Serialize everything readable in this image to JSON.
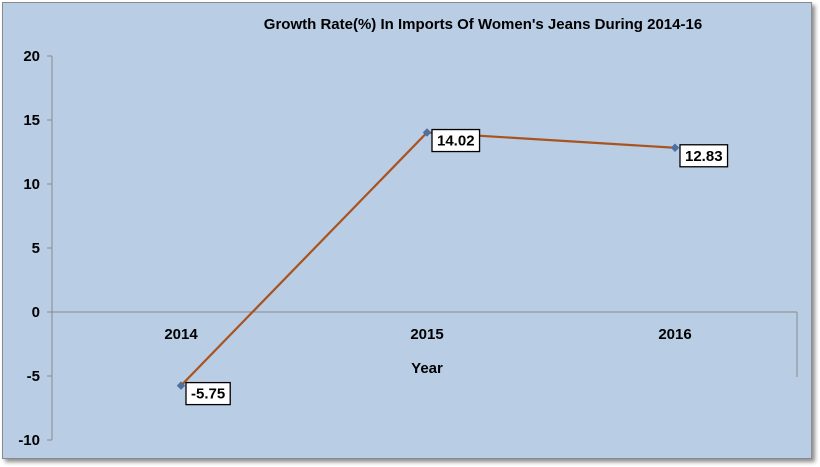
{
  "chart_data": {
    "type": "line",
    "title": "Growth Rate(%) In Imports Of Women's Jeans During 2014-16",
    "xlabel": "Year",
    "ylabel": "",
    "categories": [
      "2014",
      "2015",
      "2016"
    ],
    "series": [
      {
        "values": [
          -5.75,
          14.02,
          12.83
        ],
        "color": "#a9531f"
      }
    ],
    "data_labels": [
      "-5.75",
      "14.02",
      "12.83"
    ],
    "ylim": [
      -10,
      20
    ],
    "yticks": [
      20,
      15,
      10,
      5,
      0,
      -5,
      -10
    ],
    "grid": false,
    "legend": "none",
    "background_color": "#b9cde5",
    "marker_color": "#4f6f9f"
  }
}
